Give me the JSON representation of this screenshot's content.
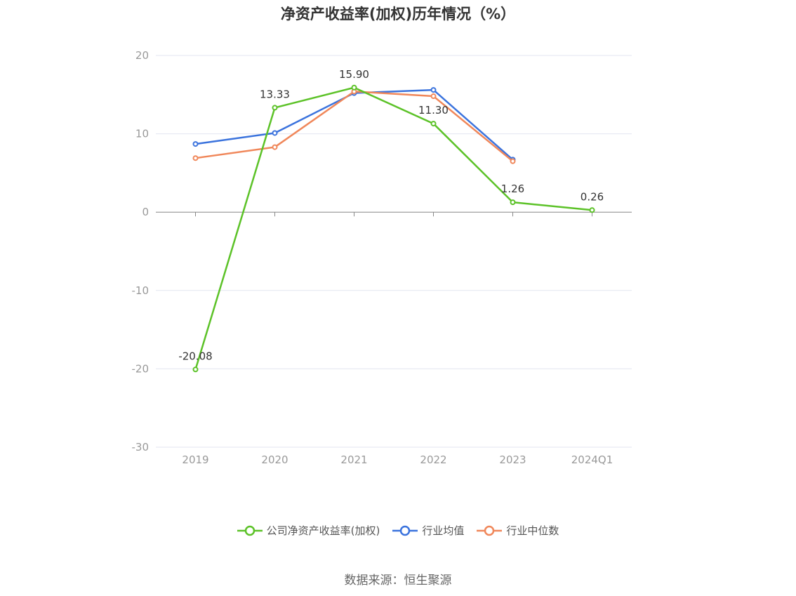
{
  "title": "净资产收益率(加权)历年情况（%）",
  "source_note": "数据来源：恒生聚源",
  "chart_data": {
    "type": "line",
    "title": "净资产收益率(加权)历年情况（%）",
    "categories": [
      "2019",
      "2020",
      "2021",
      "2022",
      "2023",
      "2024Q1"
    ],
    "ylim": [
      -30,
      20
    ],
    "yticks": [
      -30,
      -20,
      -10,
      0,
      10,
      20
    ],
    "grid": true,
    "legend_position": "bottom",
    "series": [
      {
        "name": "公司净资产收益率(加权)",
        "color": "#5cc228",
        "values": [
          -20.08,
          13.33,
          15.9,
          11.3,
          1.26,
          0.26
        ],
        "labels": [
          "-20.08",
          "13.33",
          "15.90",
          "11.30",
          "1.26",
          "0.26"
        ]
      },
      {
        "name": "行业均值",
        "color": "#3b73dd",
        "values": [
          8.7,
          10.1,
          15.2,
          15.6,
          6.7,
          null
        ]
      },
      {
        "name": "行业中位数",
        "color": "#f0875a",
        "values": [
          6.9,
          8.3,
          15.4,
          14.8,
          6.5,
          null
        ]
      }
    ]
  }
}
